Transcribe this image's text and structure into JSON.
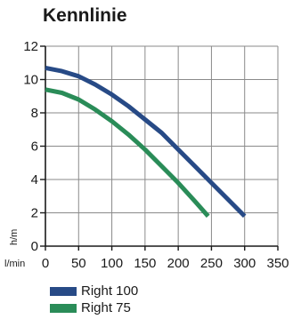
{
  "chart_data": {
    "type": "line",
    "title": "Kennlinie",
    "ylabel": "h/m",
    "xlabel": "l/min",
    "xlim": [
      0,
      350
    ],
    "ylim": [
      0,
      12
    ],
    "x_ticks": [
      0,
      50,
      100,
      150,
      200,
      250,
      300,
      350
    ],
    "y_ticks": [
      0,
      2,
      4,
      6,
      8,
      10,
      12
    ],
    "grid": true,
    "legend_position": "bottom",
    "series": [
      {
        "name": "Right 100",
        "color": "#274a86",
        "x": [
          0,
          25,
          50,
          75,
          100,
          125,
          150,
          175,
          200,
          225,
          250,
          275,
          300
        ],
        "y": [
          10.7,
          10.5,
          10.2,
          9.7,
          9.1,
          8.4,
          7.6,
          6.8,
          5.8,
          4.8,
          3.8,
          2.8,
          1.8
        ]
      },
      {
        "name": "Right 75",
        "color": "#2a8c58",
        "x": [
          0,
          25,
          50,
          75,
          100,
          125,
          150,
          175,
          200,
          225,
          245
        ],
        "y": [
          9.4,
          9.2,
          8.8,
          8.2,
          7.5,
          6.7,
          5.8,
          4.8,
          3.8,
          2.7,
          1.8
        ]
      }
    ]
  }
}
